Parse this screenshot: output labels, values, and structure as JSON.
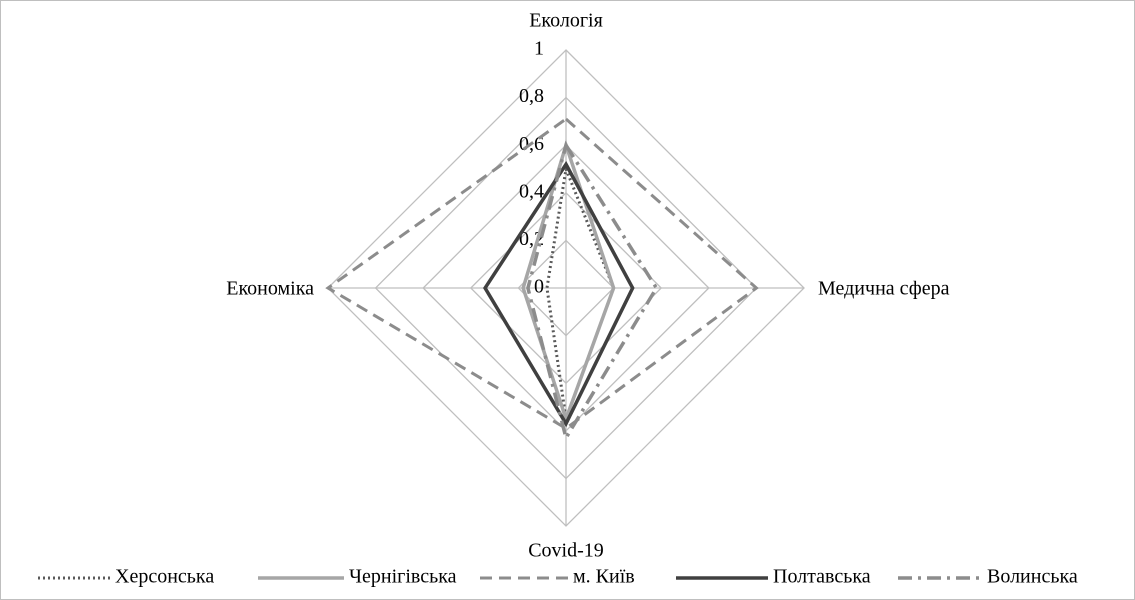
{
  "chart_data": {
    "type": "radar",
    "categories": [
      "Екологія",
      "Медична сфера",
      "Covid-19",
      "Економіка"
    ],
    "rlim": [
      0,
      1
    ],
    "rticks": [
      0,
      {
        "value": 0.2,
        "label": "0,2"
      },
      {
        "value": 0.4,
        "label": "0,4"
      },
      {
        "value": 0.6,
        "label": "0,6"
      },
      {
        "value": 0.8,
        "label": "0,8"
      },
      1
    ],
    "grid": true,
    "legend": "bottom",
    "series": [
      {
        "name": "Херсонська",
        "color": "#595959",
        "style": "dotted",
        "values": [
          0.5,
          0.2,
          0.55,
          0.08
        ]
      },
      {
        "name": "Чернігівська",
        "color": "#a6a6a6",
        "style": "solid",
        "values": [
          0.6,
          0.2,
          0.55,
          0.18
        ]
      },
      {
        "name": "м. Київ",
        "color": "#8c8c8c",
        "style": "dashed",
        "values": [
          0.71,
          0.8,
          0.59,
          1
        ]
      },
      {
        "name": "Полтавська",
        "color": "#404040",
        "style": "solid",
        "values": [
          0.52,
          0.28,
          0.57,
          0.34
        ]
      },
      {
        "name": "Волинська",
        "color": "#8c8c8c",
        "style": "dashdot",
        "values": [
          0.6,
          0.38,
          0.63,
          0.16
        ]
      }
    ]
  }
}
